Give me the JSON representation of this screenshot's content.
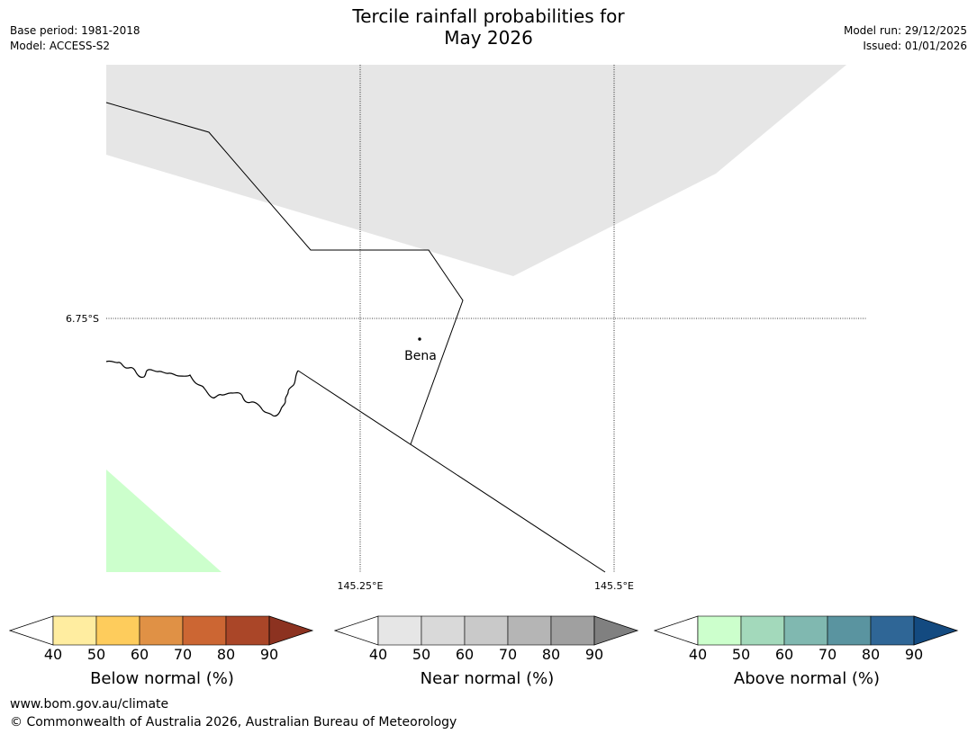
{
  "title": "Tercile rainfall probabilities for",
  "subtitle": "May 2026",
  "meta_left": {
    "base_period": "Base period: 1981-2018",
    "model": "Model: ACCESS-S2"
  },
  "meta_right": {
    "model_run": "Model run: 29/12/2025",
    "issued": "Issued: 01/01/2026"
  },
  "map": {
    "lat_label": "6.75°S",
    "lon_labels": [
      "145.25°E",
      "145.5°E"
    ],
    "place": "Bena",
    "near_normal_fill": "#e6e6e6",
    "above_normal_fill": "#ccffcc"
  },
  "colorbars": [
    {
      "label": "Below normal (%)",
      "ticks": [
        "40",
        "50",
        "60",
        "70",
        "80",
        "90"
      ],
      "colors": [
        "#ffeda0",
        "#fecc5c",
        "#e09145",
        "#cc6633",
        "#aa4628",
        "#8c3220"
      ]
    },
    {
      "label": "Near normal (%)",
      "ticks": [
        "40",
        "50",
        "60",
        "70",
        "80",
        "90"
      ],
      "colors": [
        "#e6e6e6",
        "#d9d9d9",
        "#c9c9c9",
        "#b5b5b5",
        "#a0a0a0",
        "#808080"
      ]
    },
    {
      "label": "Above normal (%)",
      "ticks": [
        "40",
        "50",
        "60",
        "70",
        "80",
        "90"
      ],
      "colors": [
        "#ccffcc",
        "#a3d9bb",
        "#80b8b0",
        "#5a94a0",
        "#2f6696",
        "#134a80"
      ]
    }
  ],
  "footer": {
    "url": "www.bom.gov.au/climate",
    "copyright": "© Commonwealth of Australia 2026, Australian Bureau of Meteorology"
  }
}
